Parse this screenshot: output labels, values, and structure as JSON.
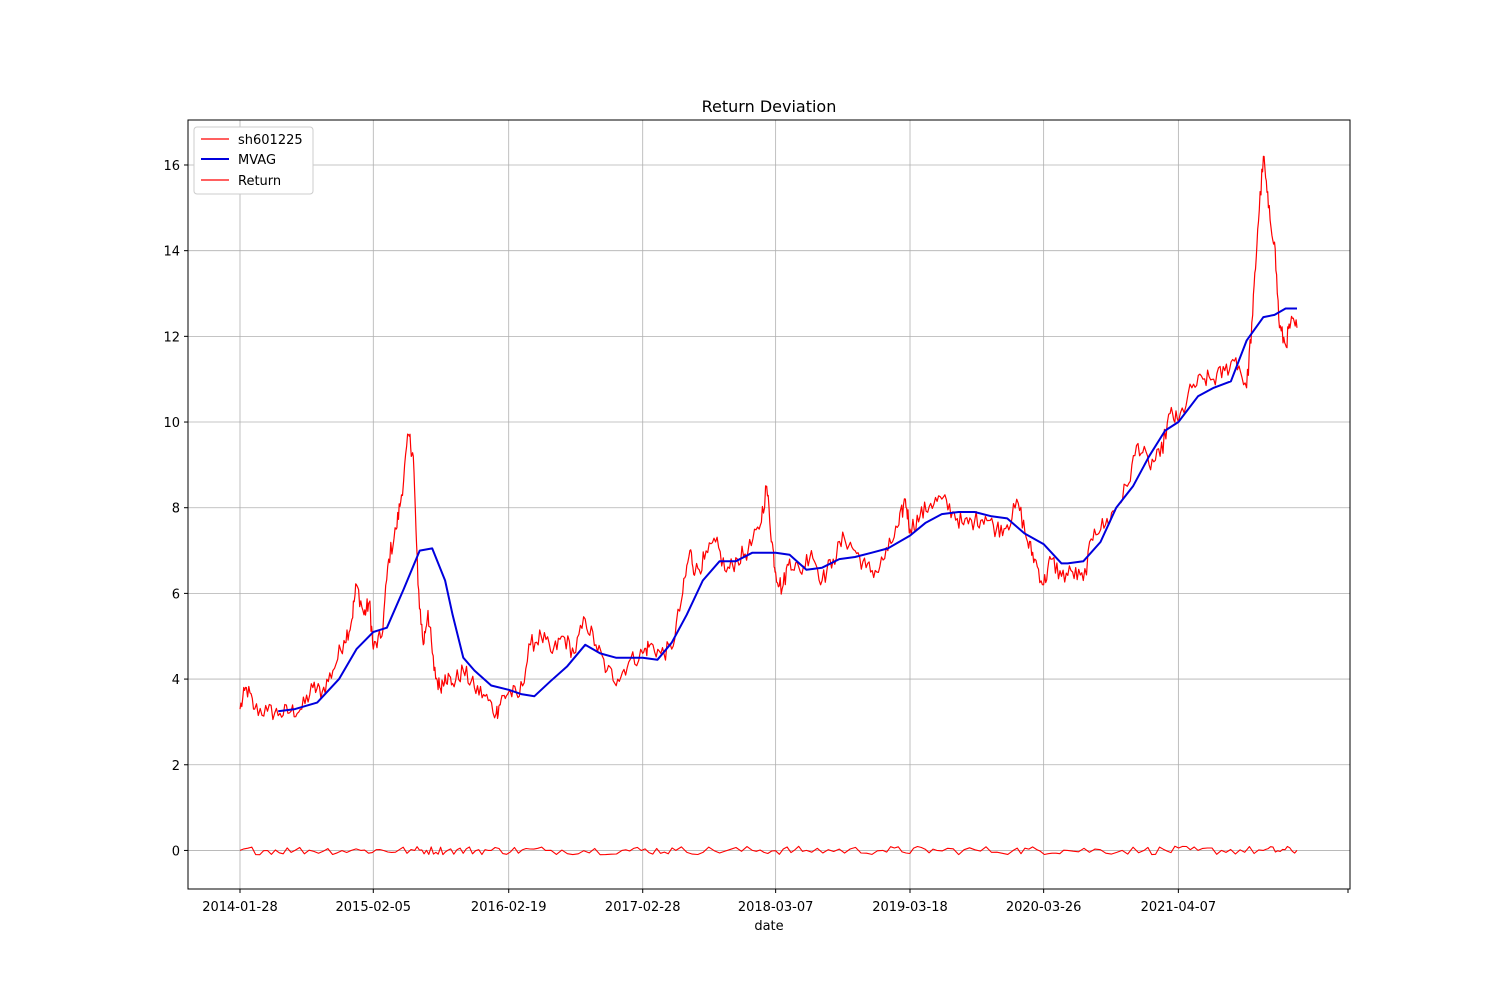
{
  "chart_data": {
    "type": "line",
    "title": "Return Deviation",
    "xlabel": "date",
    "ylabel": "",
    "ylim": [
      -0.9,
      17.05
    ],
    "yticks": [
      0,
      2,
      4,
      6,
      8,
      10,
      12,
      14,
      16
    ],
    "xticks": [
      "2014-01-28",
      "2015-02-05",
      "2016-02-19",
      "2017-02-28",
      "2018-03-07",
      "2019-03-18",
      "2020-03-26",
      "2021-04-07"
    ],
    "grid": true,
    "legend_position": "upper left",
    "colors": {
      "sh601225": "#ff0000",
      "MVAG": "#0000dd",
      "Return": "#ff0000"
    },
    "series": [
      {
        "name": "sh601225",
        "x": [
          "2014-01-28",
          "2014-02-15",
          "2014-03-10",
          "2014-04-15",
          "2014-05-20",
          "2014-06-20",
          "2014-07-20",
          "2014-08-20",
          "2014-09-15",
          "2014-10-15",
          "2014-11-15",
          "2014-12-05",
          "2014-12-20",
          "2015-01-10",
          "2015-01-25",
          "2015-02-05",
          "2015-03-01",
          "2015-03-20",
          "2015-04-10",
          "2015-04-25",
          "2015-05-15",
          "2015-05-28",
          "2015-06-10",
          "2015-06-25",
          "2015-07-08",
          "2015-07-25",
          "2015-08-10",
          "2015-08-25",
          "2015-09-15",
          "2015-10-15",
          "2015-11-15",
          "2015-12-15",
          "2016-01-15",
          "2016-01-28",
          "2016-02-19",
          "2016-03-20",
          "2016-04-20",
          "2016-05-20",
          "2016-06-20",
          "2016-07-20",
          "2016-08-20",
          "2016-09-20",
          "2016-10-20",
          "2016-11-20",
          "2016-12-20",
          "2017-01-20",
          "2017-02-28",
          "2017-03-20",
          "2017-04-20",
          "2017-05-20",
          "2017-06-20",
          "2017-07-10",
          "2017-07-25",
          "2017-08-20",
          "2017-09-20",
          "2017-10-20",
          "2017-11-20",
          "2017-12-20",
          "2018-01-20",
          "2018-02-10",
          "2018-02-25",
          "2018-03-07",
          "2018-03-25",
          "2018-04-15",
          "2018-05-15",
          "2018-06-15",
          "2018-07-15",
          "2018-08-15",
          "2018-09-15",
          "2018-10-15",
          "2018-11-15",
          "2018-12-15",
          "2019-01-15",
          "2019-02-15",
          "2019-03-05",
          "2019-03-18",
          "2019-04-15",
          "2019-05-15",
          "2019-06-15",
          "2019-07-15",
          "2019-08-15",
          "2019-09-15",
          "2019-10-15",
          "2019-11-15",
          "2019-12-15",
          "2020-01-15",
          "2020-02-10",
          "2020-03-01",
          "2020-03-26",
          "2020-04-15",
          "2020-05-15",
          "2020-06-15",
          "2020-07-15",
          "2020-08-15",
          "2020-09-15",
          "2020-10-15",
          "2020-11-15",
          "2020-12-15",
          "2021-01-15",
          "2021-02-15",
          "2021-03-15",
          "2021-04-07",
          "2021-05-15",
          "2021-06-15",
          "2021-07-15",
          "2021-08-15",
          "2021-09-15",
          "2021-10-15",
          "2021-11-01",
          "2021-11-15",
          "2021-12-01",
          "2021-12-15",
          "2022-01-01",
          "2022-01-15",
          "2022-02-01",
          "2022-02-15",
          "2022-03-05"
        ],
        "y": [
          3.3,
          3.8,
          3.3,
          3.25,
          3.2,
          3.25,
          3.3,
          3.8,
          3.7,
          4.2,
          4.9,
          5.3,
          6.2,
          5.5,
          5.8,
          4.7,
          5.0,
          6.8,
          7.5,
          8.3,
          9.7,
          9.2,
          6.2,
          4.8,
          5.6,
          4.2,
          3.8,
          4.1,
          3.9,
          4.2,
          3.8,
          3.6,
          3.2,
          3.5,
          3.7,
          3.6,
          4.8,
          5.0,
          4.6,
          5.0,
          4.6,
          5.4,
          4.8,
          4.2,
          4.0,
          4.4,
          4.6,
          4.8,
          4.6,
          4.7,
          6.0,
          7.0,
          6.5,
          6.8,
          7.2,
          6.5,
          6.8,
          7.0,
          7.5,
          8.5,
          7.2,
          6.5,
          6.1,
          6.8,
          6.5,
          7.0,
          6.3,
          6.8,
          7.3,
          7.0,
          6.6,
          6.5,
          7.0,
          7.6,
          8.2,
          7.5,
          7.8,
          8.1,
          8.2,
          7.9,
          7.6,
          7.7,
          7.8,
          7.5,
          7.6,
          8.1,
          7.2,
          6.8,
          6.2,
          6.8,
          6.4,
          6.5,
          6.3,
          7.5,
          7.6,
          8.0,
          8.5,
          9.5,
          9.0,
          9.2,
          10.2,
          10.0,
          10.8,
          11.0,
          11.0,
          11.2,
          11.5,
          10.8,
          12.5,
          14.5,
          16.2,
          15.0,
          14.2,
          12.2,
          11.8,
          12.3,
          12.2
        ]
      },
      {
        "name": "MVAG",
        "x": [
          "2014-05-15",
          "2014-07-01",
          "2014-09-01",
          "2014-11-01",
          "2014-12-20",
          "2015-02-05",
          "2015-03-15",
          "2015-05-01",
          "2015-06-15",
          "2015-07-20",
          "2015-08-25",
          "2015-09-15",
          "2015-10-15",
          "2015-11-15",
          "2016-01-01",
          "2016-02-19",
          "2016-03-25",
          "2016-05-01",
          "2016-06-15",
          "2016-08-01",
          "2016-09-20",
          "2016-11-01",
          "2016-12-15",
          "2017-02-28",
          "2017-04-10",
          "2017-05-20",
          "2017-07-01",
          "2017-08-15",
          "2017-10-01",
          "2017-11-15",
          "2018-01-01",
          "2018-03-07",
          "2018-04-15",
          "2018-06-01",
          "2018-07-15",
          "2018-09-01",
          "2018-10-15",
          "2018-12-01",
          "2019-01-15",
          "2019-03-18",
          "2019-05-01",
          "2019-06-15",
          "2019-08-01",
          "2019-09-15",
          "2019-11-01",
          "2019-12-15",
          "2020-02-01",
          "2020-03-26",
          "2020-05-15",
          "2020-06-01",
          "2020-07-15",
          "2020-09-01",
          "2020-10-15",
          "2020-12-01",
          "2021-01-15",
          "2021-03-01",
          "2021-04-07",
          "2021-06-01",
          "2021-07-15",
          "2021-09-01",
          "2021-10-15",
          "2021-12-01",
          "2022-01-01",
          "2022-02-01",
          "2022-03-05"
        ],
        "y": [
          3.25,
          3.3,
          3.45,
          4.0,
          4.7,
          5.1,
          5.2,
          6.1,
          7.0,
          7.05,
          6.3,
          5.5,
          4.5,
          4.2,
          3.85,
          3.75,
          3.65,
          3.6,
          3.95,
          4.3,
          4.8,
          4.6,
          4.5,
          4.5,
          4.45,
          4.85,
          5.5,
          6.3,
          6.75,
          6.75,
          6.95,
          6.95,
          6.9,
          6.55,
          6.6,
          6.8,
          6.85,
          6.95,
          7.05,
          7.35,
          7.65,
          7.85,
          7.9,
          7.9,
          7.8,
          7.75,
          7.4,
          7.15,
          6.7,
          6.7,
          6.75,
          7.2,
          8.0,
          8.5,
          9.2,
          9.8,
          10.0,
          10.6,
          10.8,
          10.95,
          11.9,
          12.45,
          12.5,
          12.65,
          12.65
        ]
      },
      {
        "name": "Return",
        "x": [
          "2014-01-28",
          "2014-07-01",
          "2015-01-01",
          "2015-06-01",
          "2015-09-01",
          "2016-01-01",
          "2016-06-01",
          "2017-01-01",
          "2017-06-01",
          "2018-01-01",
          "2018-06-01",
          "2019-01-01",
          "2019-06-01",
          "2020-01-01",
          "2020-06-01",
          "2021-01-01",
          "2021-06-01",
          "2021-12-01",
          "2022-03-05"
        ],
        "y": [
          0,
          0,
          0,
          0,
          0,
          0,
          0,
          0,
          0,
          0,
          0,
          0,
          0,
          0,
          0,
          0,
          0,
          0,
          0
        ],
        "note_amplitude": 0.1
      }
    ]
  }
}
